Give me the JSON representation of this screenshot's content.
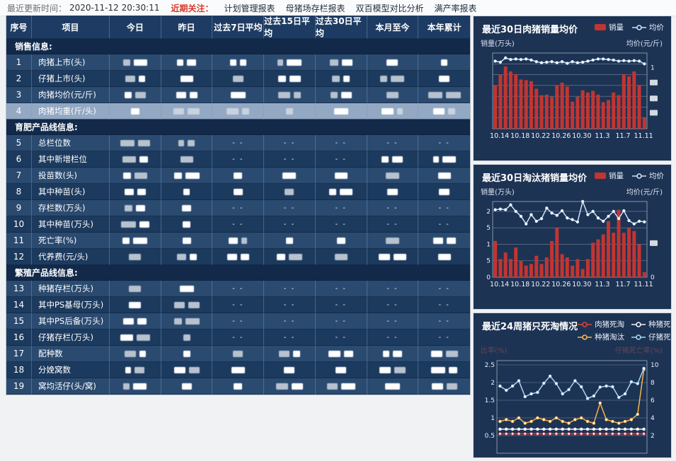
{
  "topbar": {
    "update_label": "最近更新时间：",
    "update_time": "2020-11-12 20:30:11",
    "focus_label": "近期关注：",
    "links": [
      "计划管理报表",
      "母猪场存栏报表",
      "双百模型对比分析",
      "满产率报表"
    ]
  },
  "table": {
    "headers": [
      "序号",
      "项目",
      "今日",
      "昨日",
      "过去7日平均",
      "过去15日平均",
      "过去30日平均",
      "本月至今",
      "本年累计"
    ],
    "empty_text": "- -",
    "rows": [
      {
        "type": "section",
        "label": "销售信息:"
      },
      {
        "type": "data",
        "num": "1",
        "label": "肉猪上市(头)",
        "cells": [
          "r",
          "r",
          "r",
          "r",
          "r",
          "r",
          "r"
        ]
      },
      {
        "type": "data",
        "num": "2",
        "label": "仔猪上市(头)",
        "cells": [
          "r",
          "r",
          "r",
          "r",
          "r",
          "r",
          "r"
        ]
      },
      {
        "type": "data",
        "num": "3",
        "label": "肉猪均价(元/斤)",
        "cells": [
          "r",
          "r",
          "r",
          "r",
          "r",
          "r",
          "r"
        ]
      },
      {
        "type": "data",
        "num": "4",
        "label": "肉猪均重(斤/头)",
        "highlight": true,
        "cells": [
          "r",
          "r",
          "r",
          "r",
          "r",
          "r",
          "r"
        ]
      },
      {
        "type": "section",
        "label": "育肥产品线信息:"
      },
      {
        "type": "data",
        "num": "5",
        "label": "总栏位数",
        "cells": [
          "r",
          "r",
          "-",
          "-",
          "-",
          "-",
          "-"
        ]
      },
      {
        "type": "data",
        "num": "6",
        "label": "其中新增栏位",
        "cells": [
          "r",
          "r",
          "-",
          "-",
          "-",
          "r",
          "r"
        ]
      },
      {
        "type": "data",
        "num": "7",
        "label": "投苗数(头)",
        "cells": [
          "r",
          "r",
          "r",
          "r",
          "r",
          "r",
          "r"
        ]
      },
      {
        "type": "data",
        "num": "8",
        "label": "其中种苗(头)",
        "cells": [
          "r",
          "r",
          "r",
          "r",
          "r",
          "r",
          "r"
        ]
      },
      {
        "type": "data",
        "num": "9",
        "label": "存栏数(万头)",
        "cells": [
          "r",
          "r",
          "-",
          "-",
          "-",
          "-",
          "-"
        ]
      },
      {
        "type": "data",
        "num": "10",
        "label": "其中种苗(万头)",
        "cells": [
          "r",
          "r",
          "-",
          "-",
          "-",
          "-",
          "-"
        ]
      },
      {
        "type": "data",
        "num": "11",
        "label": "死亡率(%)",
        "cells": [
          "r",
          "r",
          "r",
          "r",
          "r",
          "r",
          "r"
        ]
      },
      {
        "type": "data",
        "num": "12",
        "label": "代养费(元/头)",
        "cells": [
          "r",
          "r",
          "r",
          "r",
          "r",
          "r",
          "r"
        ]
      },
      {
        "type": "section",
        "label": "繁殖产品线信息:"
      },
      {
        "type": "data",
        "num": "13",
        "label": "种猪存栏(万头)",
        "cells": [
          "r",
          "r",
          "-",
          "-",
          "-",
          "-",
          "-"
        ]
      },
      {
        "type": "data",
        "num": "14",
        "label": "其中PS基母(万头)",
        "cells": [
          "r",
          "r",
          "-",
          "-",
          "-",
          "-",
          "-"
        ]
      },
      {
        "type": "data",
        "num": "15",
        "label": "其中PS后备(万头)",
        "cells": [
          "r",
          "r",
          "-",
          "-",
          "-",
          "-",
          "-"
        ]
      },
      {
        "type": "data",
        "num": "16",
        "label": "仔猪存栏(万头)",
        "cells": [
          "r",
          "r",
          "-",
          "-",
          "-",
          "-",
          "-"
        ]
      },
      {
        "type": "data",
        "num": "17",
        "label": "配种数",
        "cells": [
          "r",
          "r",
          "r",
          "r",
          "r",
          "r",
          "r"
        ]
      },
      {
        "type": "data",
        "num": "18",
        "label": "分娩窝数",
        "cells": [
          "r",
          "r",
          "r",
          "r",
          "r",
          "r",
          "r"
        ]
      },
      {
        "type": "data",
        "num": "19",
        "label": "窝均活仔(头/窝)",
        "cells": [
          "r",
          "r",
          "r",
          "r",
          "r",
          "r",
          "r"
        ]
      }
    ]
  },
  "colors": {
    "bar_red": "#c23531",
    "line_light": "#cfe3f5",
    "orange": "#f6b44c",
    "light_blue": "#a9d4f0",
    "white_series": "#f2f2f2",
    "red_series": "#d64541",
    "grid": "#8c9bb0",
    "card_bg": "#1d3354"
  },
  "chart_data": [
    {
      "type": "bar+line",
      "title": "最近30日肉猪销量均价",
      "legend": [
        {
          "name": "销量",
          "kind": "bar",
          "color": "#c23531"
        },
        {
          "name": "均价",
          "kind": "line",
          "color": "#cfe3f5"
        }
      ],
      "ylabel_left": "销量(万头)",
      "ylabel_right": "均价(元/斤)",
      "x_labels_shown": [
        "10.14",
        "10.18",
        "10.22",
        "10.26",
        "10.30",
        "11.3",
        "11.7",
        "11.11"
      ],
      "x_label_indices": [
        0,
        4,
        8,
        12,
        16,
        20,
        24,
        28
      ],
      "ylim_left": [
        0,
        1.4
      ],
      "grid_values": [
        0.2,
        0.4,
        0.6,
        0.8,
        1.0,
        1.2
      ],
      "left_ticks": [],
      "right_ticks": [
        {
          "t": "1",
          "f": 0.19
        },
        {
          "t": "",
          "f": 0.39
        },
        {
          "t": "",
          "f": 0.6
        },
        {
          "t": "",
          "f": 0.79
        }
      ],
      "series": [
        {
          "name": "销量",
          "kind": "bar",
          "values": [
            0.8,
            1.0,
            1.15,
            1.06,
            1.01,
            0.91,
            0.9,
            0.88,
            0.74,
            0.62,
            0.63,
            0.59,
            0.81,
            0.85,
            0.78,
            0.5,
            0.59,
            0.71,
            0.67,
            0.7,
            0.63,
            0.49,
            0.53,
            0.67,
            0.62,
            1.01,
            0.97,
            1.06,
            0.81,
            0.21
          ]
        },
        {
          "name": "均价",
          "kind": "line",
          "values": [
            1.25,
            1.23,
            1.31,
            1.28,
            1.29,
            1.28,
            1.29,
            1.27,
            1.24,
            1.22,
            1.23,
            1.24,
            1.22,
            1.24,
            1.21,
            1.24,
            1.22,
            1.23,
            1.25,
            1.27,
            1.29,
            1.29,
            1.28,
            1.27,
            1.25,
            1.26,
            1.25,
            1.26,
            1.25,
            1.2
          ]
        }
      ]
    },
    {
      "type": "bar+line",
      "title": "最近30日淘汰猪销量均价",
      "legend": [
        {
          "name": "销量",
          "kind": "bar",
          "color": "#c23531"
        },
        {
          "name": "均价",
          "kind": "line",
          "color": "#cfe3f5"
        }
      ],
      "ylabel_left": "销量(万头)",
      "ylabel_right": "均价(元/斤)",
      "x_labels_shown": [
        "10.14",
        "10.18",
        "10.22",
        "10.26",
        "10.30",
        "11.3",
        "11.7",
        "11.11"
      ],
      "x_label_indices": [
        0,
        4,
        8,
        12,
        16,
        20,
        24,
        28
      ],
      "ylim_left": [
        0,
        2.3
      ],
      "grid_values": [
        0.5,
        1.0,
        1.5,
        2.0
      ],
      "left_ticks": [
        {
          "t": "2",
          "v": 2.0
        },
        {
          "t": "5",
          "v": 1.5
        },
        {
          "t": "1",
          "v": 1.0
        },
        {
          "t": "5",
          "v": 0.5
        },
        {
          "t": "0",
          "v": 0
        }
      ],
      "right_ticks": [
        {
          "t": "",
          "f": 0.55
        },
        {
          "t": "0",
          "f": 1.0
        }
      ],
      "series": [
        {
          "name": "销量",
          "kind": "bar",
          "values": [
            1.1,
            0.55,
            0.75,
            0.55,
            0.9,
            0.5,
            0.35,
            0.4,
            0.65,
            0.4,
            0.6,
            1.1,
            1.5,
            0.7,
            0.6,
            0.35,
            0.55,
            0.25,
            0.55,
            1.05,
            1.15,
            1.3,
            1.7,
            1.35,
            2.05,
            1.35,
            1.5,
            1.4,
            1.0,
            0.15
          ]
        },
        {
          "name": "均价",
          "kind": "line",
          "values": [
            2.05,
            2.07,
            2.05,
            2.2,
            2.0,
            1.85,
            1.62,
            1.9,
            1.7,
            1.78,
            2.1,
            1.95,
            1.88,
            2.02,
            1.8,
            1.75,
            1.68,
            2.3,
            1.9,
            2.0,
            1.8,
            1.7,
            1.85,
            2.0,
            1.78,
            2.02,
            1.72,
            1.62,
            1.7,
            1.68
          ]
        }
      ]
    },
    {
      "type": "line",
      "title": "最近24周猪只死淘情况",
      "legend": [
        {
          "name": "肉猪死淘",
          "kind": "line",
          "color": "#d64541"
        },
        {
          "name": "种猪死亡",
          "kind": "line",
          "color": "#f2f2f2"
        },
        {
          "name": "种猪淘汰",
          "kind": "line",
          "color": "#f6b44c"
        },
        {
          "name": "仔猪死亡",
          "kind": "line",
          "color": "#a9d4f0"
        }
      ],
      "ylabel_left_dim": "比率(%)",
      "ylabel_right_dim": "仔猪死亡率(%)",
      "axis_pairs": [
        {
          "left": "2.5",
          "right": "10",
          "v": 2.5
        },
        {
          "left": "2",
          "right": "8",
          "v": 2.0
        },
        {
          "left": "1.5",
          "right": "6",
          "v": 1.5
        },
        {
          "left": "1",
          "right": "4",
          "v": 1.0
        },
        {
          "left": "0.5",
          "right": "2",
          "v": 0.5
        }
      ],
      "ytop": 2.62,
      "series": [
        {
          "name": "肉猪死淘",
          "color": "#d64541",
          "values": [
            0.55,
            0.55,
            0.55,
            0.55,
            0.55,
            0.55,
            0.55,
            0.55,
            0.55,
            0.55,
            0.55,
            0.55,
            0.55,
            0.55,
            0.55,
            0.55,
            0.55,
            0.55,
            0.55,
            0.55,
            0.55,
            0.55,
            0.55,
            0.55
          ]
        },
        {
          "name": "种猪死亡",
          "color": "#f2f2f2",
          "values": [
            0.68,
            0.68,
            0.68,
            0.68,
            0.68,
            0.68,
            0.68,
            0.68,
            0.68,
            0.68,
            0.68,
            0.68,
            0.68,
            0.68,
            0.68,
            0.68,
            0.68,
            0.68,
            0.68,
            0.68,
            0.68,
            0.68,
            0.68,
            0.68
          ]
        },
        {
          "name": "种猪淘汰",
          "color": "#f6b44c",
          "values": [
            0.9,
            0.95,
            0.9,
            1.0,
            0.85,
            0.9,
            1.0,
            0.95,
            0.9,
            1.0,
            0.9,
            0.85,
            0.95,
            1.0,
            0.9,
            0.85,
            1.42,
            0.95,
            0.9,
            0.85,
            0.9,
            0.95,
            1.1,
            2.37
          ]
        },
        {
          "name": "仔猪死亡",
          "color": "#a9d4f0",
          "values": [
            1.9,
            1.78,
            1.9,
            2.05,
            1.6,
            1.68,
            1.72,
            1.98,
            2.18,
            1.97,
            1.68,
            1.8,
            2.05,
            1.88,
            1.55,
            1.62,
            1.87,
            1.9,
            1.88,
            1.58,
            1.68,
            2.02,
            1.97,
            2.4
          ]
        }
      ]
    }
  ]
}
